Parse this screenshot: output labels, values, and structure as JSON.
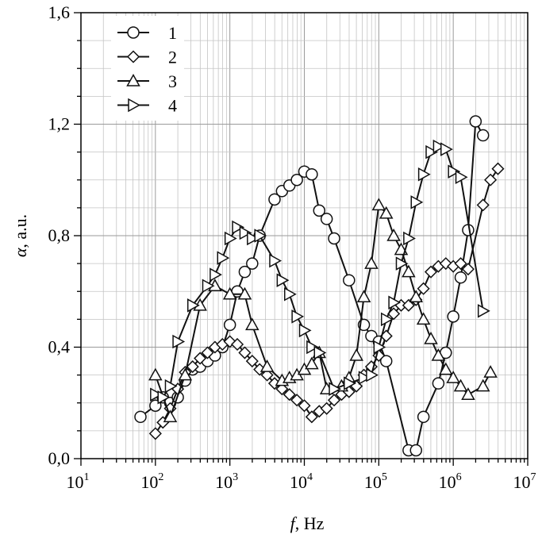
{
  "chart_data": {
    "type": "line",
    "xscale": "log",
    "xlim": [
      10,
      10000000
    ],
    "ylim": [
      0.0,
      1.6
    ],
    "grid": true,
    "legend_placement": "top-left",
    "xlabel_symbol": "f",
    "xlabel_unit": ", Hz",
    "ylabel_symbol": "α",
    "ylabel_unit": ", a.u.",
    "x_ticks": [
      {
        "value": 10,
        "base": "10",
        "exp": "1"
      },
      {
        "value": 100,
        "base": "10",
        "exp": "2"
      },
      {
        "value": 1000,
        "base": "10",
        "exp": "3"
      },
      {
        "value": 10000,
        "base": "10",
        "exp": "4"
      },
      {
        "value": 100000,
        "base": "10",
        "exp": "5"
      },
      {
        "value": 1000000,
        "base": "10",
        "exp": "6"
      },
      {
        "value": 10000000,
        "base": "10",
        "exp": "7"
      }
    ],
    "y_ticks": [
      {
        "value": 0.0,
        "label": "0,0"
      },
      {
        "value": 0.4,
        "label": "0,4"
      },
      {
        "value": 0.8,
        "label": "0,8"
      },
      {
        "value": 1.2,
        "label": "1,2"
      },
      {
        "value": 1.6,
        "label": "1,6"
      }
    ],
    "series": [
      {
        "name": "1",
        "marker": "circle",
        "x": [
          63,
          100,
          126,
          158,
          200,
          251,
          316,
          398,
          501,
          631,
          794,
          1000,
          1259,
          1585,
          1995,
          2512,
          3981,
          5012,
          6310,
          7943,
          10000,
          12589,
          15849,
          19953,
          25119,
          39811,
          63096,
          79433,
          100000,
          125893,
          251189,
          316228,
          398107,
          630957,
          794328,
          1000000,
          1258925,
          1584893,
          1995262,
          2511886
        ],
        "y": [
          0.15,
          0.19,
          0.22,
          0.2,
          0.22,
          0.28,
          0.32,
          0.33,
          0.35,
          0.37,
          0.4,
          0.48,
          0.6,
          0.67,
          0.7,
          0.8,
          0.93,
          0.96,
          0.98,
          1.0,
          1.03,
          1.02,
          0.89,
          0.86,
          0.79,
          0.64,
          0.48,
          0.44,
          0.42,
          0.35,
          0.03,
          0.03,
          0.15,
          0.27,
          0.38,
          0.51,
          0.65,
          0.82,
          1.21,
          1.16
        ]
      },
      {
        "name": "2",
        "marker": "diamond",
        "x": [
          100,
          126,
          158,
          200,
          251,
          316,
          398,
          501,
          631,
          794,
          1000,
          1259,
          1585,
          1995,
          2512,
          3162,
          3981,
          5012,
          6310,
          7943,
          10000,
          12589,
          15849,
          19953,
          25119,
          31623,
          39811,
          50119,
          63096,
          79433,
          100000,
          125893,
          158489,
          199526,
          251189,
          316228,
          398107,
          501187,
          630957,
          794328,
          1000000,
          1258925,
          1584893,
          2511886,
          3162278,
          3981072
        ],
        "y": [
          0.09,
          0.13,
          0.18,
          0.25,
          0.31,
          0.33,
          0.36,
          0.38,
          0.4,
          0.41,
          0.42,
          0.41,
          0.38,
          0.35,
          0.32,
          0.3,
          0.27,
          0.25,
          0.23,
          0.21,
          0.19,
          0.15,
          0.17,
          0.18,
          0.21,
          0.23,
          0.24,
          0.26,
          0.3,
          0.33,
          0.37,
          0.44,
          0.52,
          0.55,
          0.55,
          0.57,
          0.61,
          0.67,
          0.69,
          0.7,
          0.69,
          0.7,
          0.68,
          0.91,
          1.0,
          1.04
        ]
      },
      {
        "name": "3",
        "marker": "triangle",
        "x": [
          100,
          158,
          251,
          398,
          631,
          1000,
          1585,
          1995,
          3162,
          5012,
          6310,
          7943,
          10000,
          12589,
          15849,
          19953,
          31623,
          39811,
          50119,
          63096,
          79433,
          100000,
          125893,
          158489,
          199526,
          251189,
          316228,
          398107,
          501187,
          630957,
          794328,
          1000000,
          1258925,
          1584893,
          2511886,
          3162278
        ],
        "y": [
          0.3,
          0.15,
          0.3,
          0.55,
          0.62,
          0.59,
          0.59,
          0.48,
          0.33,
          0.28,
          0.29,
          0.3,
          0.32,
          0.34,
          0.38,
          0.25,
          0.26,
          0.29,
          0.37,
          0.58,
          0.7,
          0.91,
          0.88,
          0.8,
          0.75,
          0.67,
          0.58,
          0.5,
          0.43,
          0.37,
          0.32,
          0.29,
          0.26,
          0.23,
          0.26,
          0.31
        ]
      },
      {
        "name": "4",
        "marker": "triangle-right",
        "x": [
          100,
          126,
          158,
          200,
          316,
          501,
          631,
          794,
          1000,
          1259,
          1585,
          1995,
          2512,
          3981,
          5012,
          6310,
          7943,
          10000,
          12589,
          15849,
          25119,
          39811,
          63096,
          79433,
          100000,
          125893,
          158489,
          199526,
          251189,
          316228,
          398107,
          501187,
          630957,
          794328,
          1000000,
          1258925,
          2511886
        ],
        "y": [
          0.23,
          0.22,
          0.26,
          0.42,
          0.55,
          0.62,
          0.66,
          0.72,
          0.79,
          0.83,
          0.81,
          0.79,
          0.8,
          0.71,
          0.64,
          0.59,
          0.51,
          0.46,
          0.4,
          0.38,
          0.25,
          0.27,
          0.29,
          0.3,
          0.4,
          0.5,
          0.56,
          0.7,
          0.79,
          0.92,
          1.02,
          1.1,
          1.12,
          1.11,
          1.03,
          1.01,
          0.53
        ]
      }
    ]
  }
}
